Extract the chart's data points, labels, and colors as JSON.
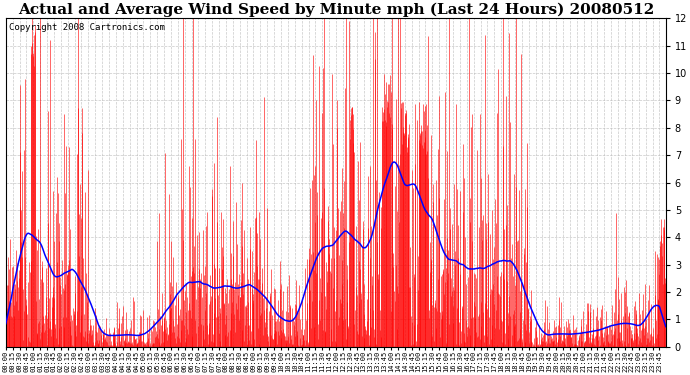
{
  "title": "Actual and Average Wind Speed by Minute mph (Last 24 Hours) 20080512",
  "copyright": "Copyright 2008 Cartronics.com",
  "ylim": [
    0.0,
    12.0
  ],
  "yticks": [
    0.0,
    1.0,
    2.0,
    3.0,
    4.0,
    5.0,
    6.0,
    7.0,
    8.0,
    9.0,
    10.0,
    11.0,
    12.0
  ],
  "bar_color": "#FF0000",
  "line_color": "#0000FF",
  "background_color": "#FFFFFF",
  "title_fontsize": 11,
  "copyright_fontsize": 6.5,
  "grid_color": "#BBBBBB",
  "tick_interval_minutes": 15
}
